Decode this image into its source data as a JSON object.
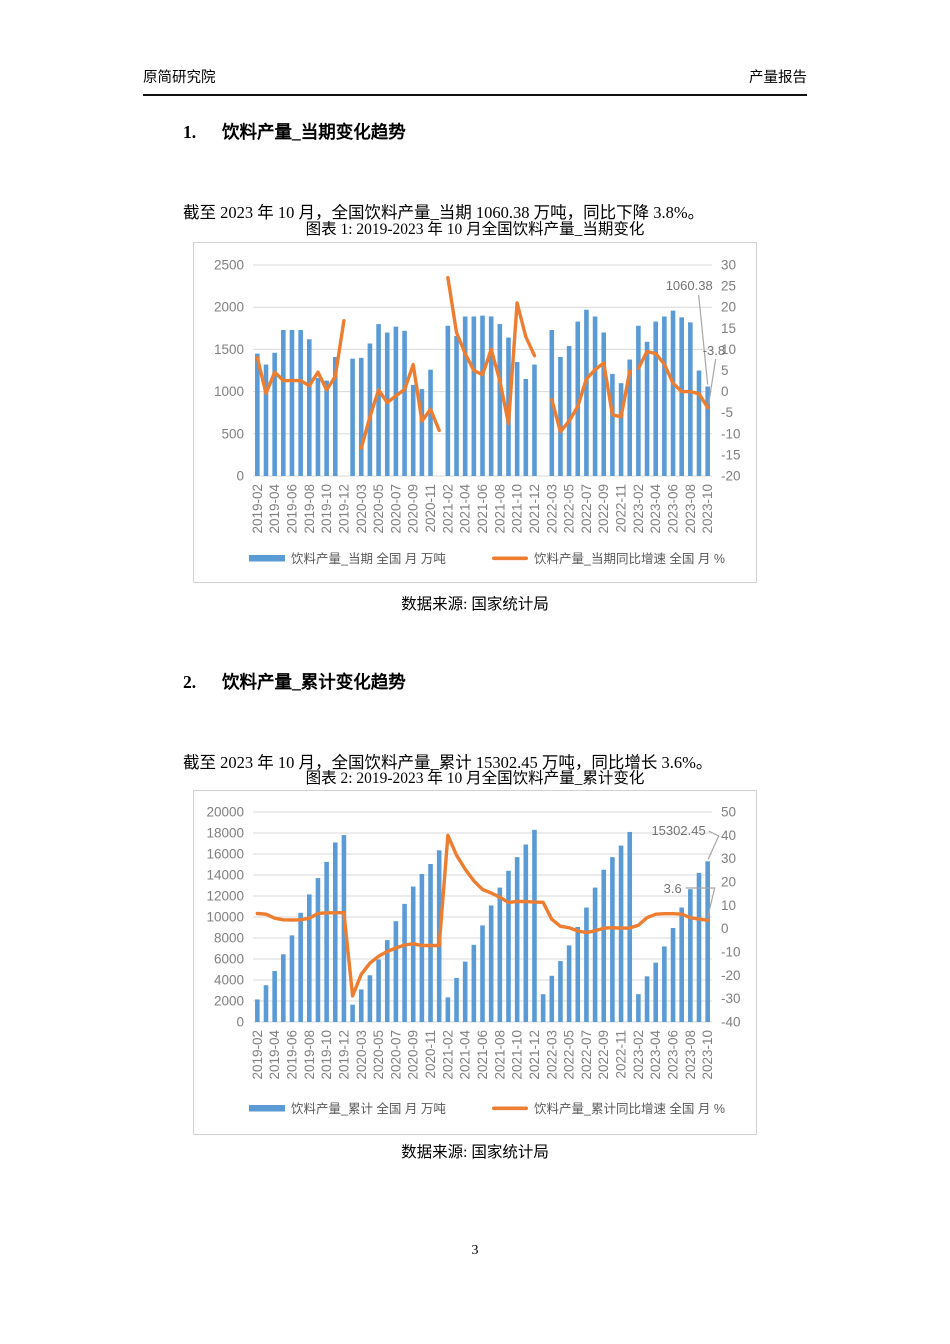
{
  "header": {
    "left": "原简研究院",
    "right": "产量报告"
  },
  "sections": [
    {
      "number": "1.",
      "title": "饮料产量_当期变化趋势",
      "paragraph": "截至 2023 年 10 月，全国饮料产量_当期 1060.38 万吨，同比下降 3.8%。",
      "figure_title": "图表 1: 2019-2023 年 10 月全国饮料产量_当期变化",
      "source": "数据来源: 国家统计局"
    },
    {
      "number": "2.",
      "title": "饮料产量_累计变化趋势",
      "paragraph": "截至 2023 年 10 月，全国饮料产量_累计 15302.45 万吨，同比增长 3.6%。",
      "figure_title": "图表 2: 2019-2023 年 10 月全国饮料产量_累计变化",
      "source": "数据来源: 国家统计局"
    }
  ],
  "page": {
    "footer_page_number": "3"
  },
  "colors": {
    "bar": "#5B9BD5",
    "line": "#ED7D31",
    "grid": "#D9D9D9",
    "border": "#D2D2D2",
    "axis_text": "#808080",
    "legend_text": "#595959",
    "callout": "#A6A6A6"
  },
  "chart_data": [
    {
      "type": "bar+line",
      "title": "图表 1: 2019-2023 年 10 月全国饮料产量_当期变化",
      "categories": [
        "2019-02",
        "2019-03",
        "2019-04",
        "2019-05",
        "2019-06",
        "2019-07",
        "2019-08",
        "2019-09",
        "2019-10",
        "2019-11",
        "2019-12",
        "2020-02",
        "2020-03",
        "2020-04",
        "2020-05",
        "2020-06",
        "2020-07",
        "2020-08",
        "2020-09",
        "2020-10",
        "2020-11",
        "2020-12",
        "2021-02",
        "2021-03",
        "2021-04",
        "2021-05",
        "2021-06",
        "2021-07",
        "2021-08",
        "2021-09",
        "2021-10",
        "2021-11",
        "2021-12",
        "2022-02",
        "2022-03",
        "2022-04",
        "2022-05",
        "2022-06",
        "2022-07",
        "2022-08",
        "2022-09",
        "2022-10",
        "2022-11",
        "2022-12",
        "2023-02",
        "2023-03",
        "2023-04",
        "2023-05",
        "2023-06",
        "2023-07",
        "2023-08",
        "2023-09",
        "2023-10"
      ],
      "x_label_every": 2,
      "bar_series": {
        "name": "饮料产量_当期 全国 月 万吨",
        "values": [
          1450,
          1320,
          1460,
          1730,
          1730,
          1730,
          1620,
          1160,
          1130,
          1410,
          null,
          1390,
          1400,
          1570,
          1800,
          1700,
          1770,
          1720,
          1080,
          1030,
          1260,
          null,
          1780,
          1660,
          1890,
          1890,
          1900,
          1890,
          1800,
          1640,
          1350,
          1150,
          1320,
          null,
          1730,
          1410,
          1540,
          1830,
          1970,
          1890,
          1700,
          1210,
          1100,
          1380,
          1780,
          1590,
          1830,
          1890,
          1960,
          1880,
          1820,
          1250,
          1060.38
        ]
      },
      "line_series": {
        "name": "饮料产量_当期同比增速 全国 月 %",
        "values": [
          8,
          -0.4,
          4.6,
          2.6,
          2.6,
          2.6,
          1.4,
          4.6,
          0.4,
          3.6,
          16.8,
          null,
          -13.4,
          -6,
          0.4,
          -2.6,
          -1,
          0.5,
          6.4,
          -7,
          -4.2,
          -9.2,
          27,
          14,
          9,
          5,
          4,
          10,
          2.6,
          -7.6,
          21,
          13,
          8.5,
          null,
          -1.9,
          -9.5,
          -7,
          -3.5,
          3,
          5.2,
          6.8,
          -5.5,
          -6,
          4.8,
          5.5,
          9.5,
          9,
          6.5,
          2,
          0,
          0,
          -0.5,
          -3.8
        ],
        "breaks_after": [
          "2020-12",
          "2022-12"
        ]
      },
      "left_axis": {
        "min": 0,
        "max": 2500,
        "step": 500
      },
      "right_axis": {
        "min": -20,
        "max": 30,
        "step": 5
      },
      "grid": true,
      "legend_position": "bottom",
      "annotations": [
        {
          "text": "1060.38",
          "target": "bar_last"
        },
        {
          "text": "-3.8",
          "target": "line_last"
        }
      ]
    },
    {
      "type": "bar+line",
      "title": "图表 2: 2019-2023 年 10 月全国饮料产量_累计变化",
      "categories": [
        "2019-02",
        "2019-03",
        "2019-04",
        "2019-05",
        "2019-06",
        "2019-07",
        "2019-08",
        "2019-09",
        "2019-10",
        "2019-11",
        "2019-12",
        "2020-02",
        "2020-03",
        "2020-04",
        "2020-05",
        "2020-06",
        "2020-07",
        "2020-08",
        "2020-09",
        "2020-10",
        "2020-11",
        "2020-12",
        "2021-02",
        "2021-03",
        "2021-04",
        "2021-05",
        "2021-06",
        "2021-07",
        "2021-08",
        "2021-09",
        "2021-10",
        "2021-11",
        "2021-12",
        "2022-02",
        "2022-03",
        "2022-04",
        "2022-05",
        "2022-06",
        "2022-07",
        "2022-08",
        "2022-09",
        "2022-10",
        "2022-11",
        "2022-12",
        "2023-02",
        "2023-03",
        "2023-04",
        "2023-05",
        "2023-06",
        "2023-07",
        "2023-08",
        "2023-09",
        "2023-10"
      ],
      "x_label_every": 2,
      "bar_series": {
        "name": "饮料产量_累计 全国 月 万吨",
        "values": [
          2150,
          3500,
          4850,
          6450,
          8250,
          10400,
          12150,
          13700,
          15250,
          17100,
          17800,
          1650,
          3100,
          4450,
          5950,
          7800,
          9600,
          11250,
          12900,
          14100,
          15050,
          16350,
          2350,
          4200,
          5750,
          7350,
          9200,
          11100,
          12800,
          14400,
          15700,
          16900,
          18300,
          2650,
          4400,
          5800,
          7300,
          9050,
          10900,
          12800,
          14500,
          15700,
          16800,
          18100,
          2650,
          4350,
          5650,
          7200,
          8950,
          10900,
          12650,
          14200,
          15302.45
        ]
      },
      "line_series": {
        "name": "饮料产量_累计同比增速 全国 月 %",
        "values": [
          6.5,
          6.2,
          4.5,
          3.8,
          3.7,
          3.8,
          4.5,
          6.5,
          6.8,
          6.8,
          6.9,
          -28.8,
          -19.5,
          -14.8,
          -11.8,
          -9.8,
          -8.3,
          -7.0,
          -6.5,
          -7.2,
          -7.2,
          -7.2,
          40,
          31.5,
          25.5,
          20.5,
          16.8,
          15.3,
          13.5,
          11.2,
          11.7,
          11.6,
          11.4,
          11.3,
          4.0,
          1.0,
          0.4,
          -1.0,
          -1.7,
          -0.9,
          0.2,
          0.4,
          0.2,
          0.3,
          1.5,
          4.7,
          6.2,
          6.4,
          6.4,
          6.2,
          4.7,
          4.1,
          3.6
        ],
        "breaks_after": []
      },
      "left_axis": {
        "min": 0,
        "max": 20000,
        "step": 2000
      },
      "right_axis": {
        "min": -40,
        "max": 50,
        "step": 10
      },
      "grid": true,
      "legend_position": "bottom",
      "annotations": [
        {
          "text": "15302.45",
          "target": "bar_last"
        },
        {
          "text": "3.6",
          "target": "line_last"
        }
      ]
    }
  ]
}
